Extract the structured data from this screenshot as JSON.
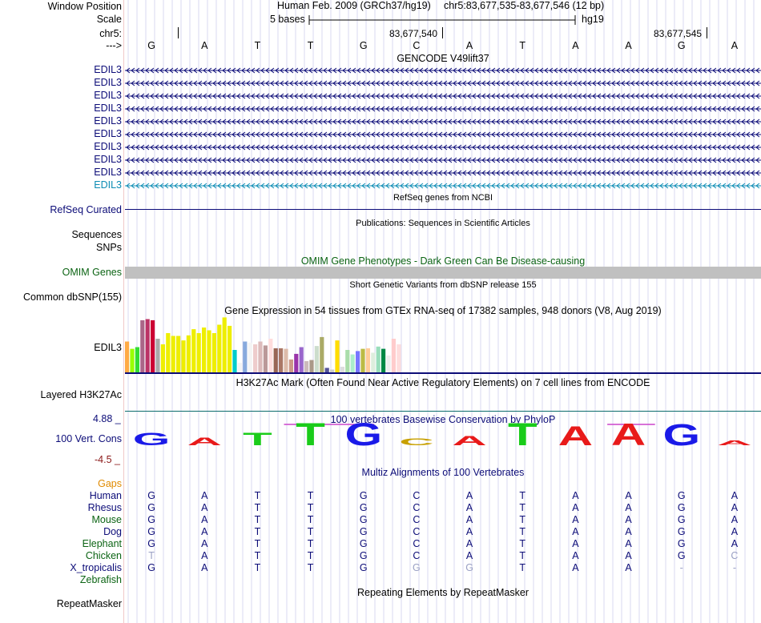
{
  "header": {
    "window_position_label": "Window Position",
    "scale_label": "Scale",
    "chrom_label": "chr5:",
    "strand_label": "--->",
    "assembly_title": "Human Feb. 2009 (GRCh37/hg19)",
    "position_text": "chr5:83,677,535-83,677,546 (12 bp)",
    "scale_text": "5 bases",
    "db_text": "hg19",
    "coord_left": "83,677,540",
    "coord_right": "83,677,545",
    "bases": [
      "G",
      "A",
      "T",
      "T",
      "G",
      "C",
      "A",
      "T",
      "A",
      "A",
      "G",
      "A"
    ]
  },
  "gencode": {
    "title": "GENCODE V49lift37",
    "genes": [
      "EDIL3",
      "EDIL3",
      "EDIL3",
      "EDIL3",
      "EDIL3",
      "EDIL3",
      "EDIL3",
      "EDIL3",
      "EDIL3",
      "EDIL3"
    ],
    "colors": [
      "#0c0c78",
      "#0c0c78",
      "#0c0c78",
      "#0c0c78",
      "#0c0c78",
      "#0c0c78",
      "#0c0c78",
      "#0c0c78",
      "#0c0c78",
      "#0c8cb4"
    ]
  },
  "refseq": {
    "title": "RefSeq genes from NCBI",
    "label": "RefSeq Curated"
  },
  "publications": {
    "title": "Publications: Sequences in Scientific Articles",
    "label_seq": "Sequences",
    "label_snp": "SNPs"
  },
  "omim": {
    "title": "OMIM Gene Phenotypes - Dark Green Can Be Disease-causing",
    "label": "OMIM Genes"
  },
  "dbsnp": {
    "title": "Short Genetic Variants from dbSNP release 155",
    "label": "Common dbSNP(155)"
  },
  "gtex": {
    "title": "Gene Expression in 54 tissues from GTEx RNA-seq of 17382 samples, 948 donors (V8, Aug 2019)",
    "label": "EDIL3",
    "values": [
      0.55,
      0.42,
      0.45,
      0.93,
      0.95,
      0.93,
      0.6,
      0.5,
      0.7,
      0.65,
      0.65,
      0.57,
      0.66,
      0.77,
      0.7,
      0.8,
      0.75,
      0.7,
      0.85,
      0.98,
      0.83,
      0.4,
      0.17,
      0.55,
      0.53,
      0.5,
      0.55,
      0.48,
      0.6,
      0.43,
      0.43,
      0.42,
      0.23,
      0.33,
      0.45,
      0.2,
      0.22,
      0.47,
      0.63,
      0.08,
      0.05,
      0.57,
      0.1,
      0.4,
      0.32,
      0.38,
      0.42,
      0.43,
      0.35,
      0.46,
      0.42,
      0.3,
      0.6,
      0.5
    ],
    "colors": [
      "#FFAA44",
      "#99FF00",
      "#33DD33",
      "#AA6688",
      "#BB3366",
      "#CC0033",
      "#AAAAAA",
      "#EEEE00",
      "#EEEE00",
      "#EEEE00",
      "#EEEE00",
      "#EEEE00",
      "#EEEE00",
      "#EEEE00",
      "#EEEE00",
      "#EEEE00",
      "#EEEE00",
      "#EEEE00",
      "#EEEE00",
      "#EEEE00",
      "#EEEE00",
      "#00CCCC",
      "#FFFFFF",
      "#88AADD",
      "#FFFFFF",
      "#EECCCC",
      "#DDBBBB",
      "#BB9999",
      "#FFDDDD",
      "#996655",
      "#AA7766",
      "#DDBBAA",
      "#CC9988",
      "#9933AA",
      "#9966CC",
      "#CCBBBB",
      "#AA9988",
      "#CCDDCC",
      "#AAAA66",
      "#555599",
      "#CCCCCC",
      "#FFDD00",
      "#DDDDDD",
      "#AADDAA",
      "#AAEECC",
      "#7777FF",
      "#BBBB44",
      "#FFCC99",
      "#DDEEDD",
      "#99DDBB",
      "#008844",
      "#EEEEEE",
      "#FFCCCC",
      "#FFDDDD"
    ]
  },
  "h3k27ac": {
    "title": "H3K27Ac Mark (Often Found Near Active Regulatory Elements) on 7 cell lines from ENCODE",
    "label": "Layered H3K27Ac"
  },
  "phylop": {
    "title": "100 vertebrates Basewise Conservation by PhyloP",
    "label": "100 Vert. Cons",
    "max_label": "4.88 _",
    "min_label": "-4.5 _",
    "scores": [
      0.55,
      0.35,
      0.55,
      1.0,
      1.0,
      0.3,
      0.42,
      1.0,
      0.85,
      0.98,
      0.95,
      0.2
    ]
  },
  "multiz": {
    "title": "Multiz Alignments of 100 Vertebrates",
    "gaps_label": "Gaps",
    "species": [
      {
        "name": "Human",
        "bases": [
          "G",
          "A",
          "T",
          "T",
          "G",
          "C",
          "A",
          "T",
          "A",
          "A",
          "G",
          "A"
        ]
      },
      {
        "name": "Rhesus",
        "bases": [
          "G",
          "A",
          "T",
          "T",
          "G",
          "C",
          "A",
          "T",
          "A",
          "A",
          "G",
          "A"
        ]
      },
      {
        "name": "Mouse",
        "bases": [
          "G",
          "A",
          "T",
          "T",
          "G",
          "C",
          "A",
          "T",
          "A",
          "A",
          "G",
          "A"
        ]
      },
      {
        "name": "Dog",
        "bases": [
          "G",
          "A",
          "T",
          "T",
          "G",
          "C",
          "A",
          "T",
          "A",
          "A",
          "G",
          "A"
        ]
      },
      {
        "name": "Elephant",
        "bases": [
          "G",
          "A",
          "T",
          "T",
          "G",
          "C",
          "A",
          "T",
          "A",
          "A",
          "G",
          "A"
        ]
      },
      {
        "name": "Chicken",
        "bases": [
          "T",
          "A",
          "T",
          "T",
          "G",
          "C",
          "A",
          "T",
          "A",
          "A",
          "G",
          "C"
        ]
      },
      {
        "name": "X_tropicalis",
        "bases": [
          "G",
          "A",
          "T",
          "T",
          "G",
          "G",
          "G",
          "T",
          "A",
          "A",
          "-",
          "-"
        ]
      },
      {
        "name": "Zebrafish",
        "bases": [
          "",
          "",
          "",
          "",
          "",
          "",
          "",
          "",
          "",
          "",
          "",
          ""
        ]
      }
    ],
    "mismatch_positions": [
      [],
      [],
      [],
      [],
      [],
      [
        0,
        11
      ],
      [
        5,
        6,
        10,
        11
      ],
      []
    ],
    "species_colors": [
      "#0c0c78",
      "#0c0c78",
      "#0c6414",
      "#0c0c78",
      "#0c6414",
      "#0c6414",
      "#0c0c78",
      "#0c6414"
    ]
  },
  "repeatmasker": {
    "title": "Repeating Elements by RepeatMasker",
    "label": "RepeatMasker"
  }
}
